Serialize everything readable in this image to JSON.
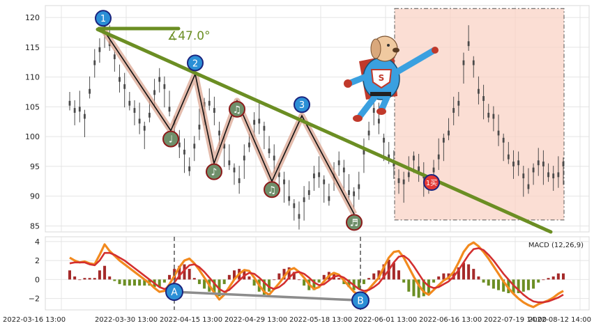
{
  "chart_data": {
    "type": "candlestick+macd",
    "x_tick_labels": [
      "2022-03-16 13:00",
      "2022-03-30 13:00",
      "2022-04-15 13:00",
      "2022-04-29 13:00",
      "2022-05-18 13:00",
      "2022-06-01 13:00",
      "2022-06-16 13:00",
      "2022-07-19 14:00",
      "2022-08-12 14:00"
    ],
    "price_panel": {
      "ylim": [
        84,
        122
      ],
      "yticks": [
        85,
        90,
        95,
        100,
        105,
        110,
        115,
        120
      ],
      "grid": true,
      "price_series": [
        106,
        104,
        105,
        103,
        108,
        112,
        115,
        118,
        116,
        113,
        110,
        108,
        106,
        104,
        103,
        101,
        104,
        107,
        110,
        108,
        105,
        102,
        99,
        97,
        95,
        98,
        102,
        105,
        106,
        104,
        101,
        98,
        96,
        94,
        93,
        96,
        99,
        102,
        103,
        101,
        98,
        96,
        94,
        92,
        90,
        88,
        87,
        89,
        91,
        93,
        94,
        92,
        90,
        93,
        96,
        94,
        91,
        90,
        92,
        97,
        101,
        104,
        103,
        99,
        97,
        95,
        93,
        92,
        94,
        96,
        95,
        93,
        92,
        94,
        97,
        99,
        101,
        104,
        106,
        112,
        116,
        112,
        108,
        106,
        104,
        103,
        101,
        99,
        97,
        95,
        96,
        93,
        92,
        94,
        96,
        95,
        94,
        93,
        94,
        95
      ],
      "wave_points": [
        {
          "label": "1",
          "price": 118
        },
        {
          "label": "♩",
          "price": 101
        },
        {
          "label": "2",
          "price": 110.5
        },
        {
          "label": "♪",
          "price": 95.5
        },
        {
          "label": "♫",
          "price": 106
        },
        {
          "label": "♫",
          "price": 92.5
        },
        {
          "label": "3",
          "price": 103.5
        },
        {
          "label": "♬",
          "price": 87
        }
      ],
      "trendline": {
        "start_price": 118,
        "end_price": 84
      },
      "angle_label": "∡47.0°",
      "buy_marker": {
        "label": "1买",
        "price": 92.3
      },
      "highlight_region": {
        "from_price": 86,
        "to_price": 121.5
      }
    },
    "macd_panel": {
      "label": "MACD (12,26,9)",
      "ylim": [
        -3.2,
        4.5
      ],
      "yticks": [
        -2,
        0,
        2,
        4
      ],
      "dif": [
        2.3,
        2.0,
        1.8,
        1.9,
        1.7,
        1.6,
        2.6,
        3.7,
        3.0,
        2.5,
        2.0,
        1.6,
        1.2,
        0.8,
        0.4,
        0.0,
        -0.4,
        -0.9,
        -1.3,
        -1.2,
        -0.5,
        0.4,
        1.3,
        2.0,
        2.2,
        1.7,
        1.0,
        0.2,
        -0.6,
        -1.4,
        -2.1,
        -1.6,
        -0.8,
        0.0,
        0.6,
        1.0,
        0.9,
        0.2,
        -0.6,
        -1.3,
        -1.6,
        -1.0,
        -0.4,
        0.3,
        1.0,
        1.2,
        0.8,
        0.2,
        -0.5,
        -1.0,
        -0.8,
        -0.2,
        0.4,
        0.7,
        0.5,
        -0.1,
        -0.7,
        -1.3,
        -1.6,
        -1.5,
        -1.0,
        -0.4,
        0.2,
        1.3,
        2.3,
        2.9,
        3.0,
        2.3,
        1.3,
        0.3,
        -0.6,
        -1.3,
        -1.6,
        -1.1,
        -0.6,
        -0.1,
        0.2,
        0.8,
        1.8,
        2.9,
        3.6,
        3.9,
        3.5,
        2.9,
        2.2,
        1.4,
        0.6,
        -0.2,
        -0.9,
        -1.5,
        -2.0,
        -2.4,
        -2.7,
        -2.9,
        -2.6,
        -2.4,
        -2.2,
        -1.9,
        -1.5,
        -1.2
      ],
      "dea": [
        1.7,
        1.8,
        1.8,
        1.8,
        1.6,
        1.5,
        2.0,
        2.8,
        2.8,
        2.6,
        2.3,
        2.0,
        1.6,
        1.2,
        0.8,
        0.4,
        0.0,
        -0.4,
        -0.8,
        -1.0,
        -0.8,
        -0.3,
        0.4,
        1.0,
        1.5,
        1.6,
        1.3,
        0.8,
        0.2,
        -0.4,
        -1.0,
        -1.3,
        -1.1,
        -0.6,
        -0.1,
        0.4,
        0.7,
        0.6,
        0.2,
        -0.3,
        -0.8,
        -1.0,
        -0.8,
        -0.4,
        0.2,
        0.7,
        0.8,
        0.6,
        0.2,
        -0.3,
        -0.6,
        -0.5,
        -0.1,
        0.3,
        0.4,
        0.2,
        -0.2,
        -0.6,
        -1.0,
        -1.2,
        -1.1,
        -0.8,
        -0.4,
        0.3,
        1.0,
        1.8,
        2.4,
        2.5,
        2.1,
        1.4,
        0.6,
        -0.2,
        -0.7,
        -0.9,
        -0.8,
        -0.5,
        -0.2,
        0.3,
        1.0,
        1.8,
        2.6,
        3.2,
        3.3,
        3.1,
        2.6,
        2.0,
        1.3,
        0.6,
        0.0,
        -0.6,
        -1.1,
        -1.6,
        -2.0,
        -2.3,
        -2.4,
        -2.4,
        -2.3,
        -2.1,
        -1.9,
        -1.6
      ],
      "divergence_points": [
        {
          "label": "A",
          "value": -1.3
        },
        {
          "label": "B",
          "value": -2.2
        }
      ]
    }
  }
}
